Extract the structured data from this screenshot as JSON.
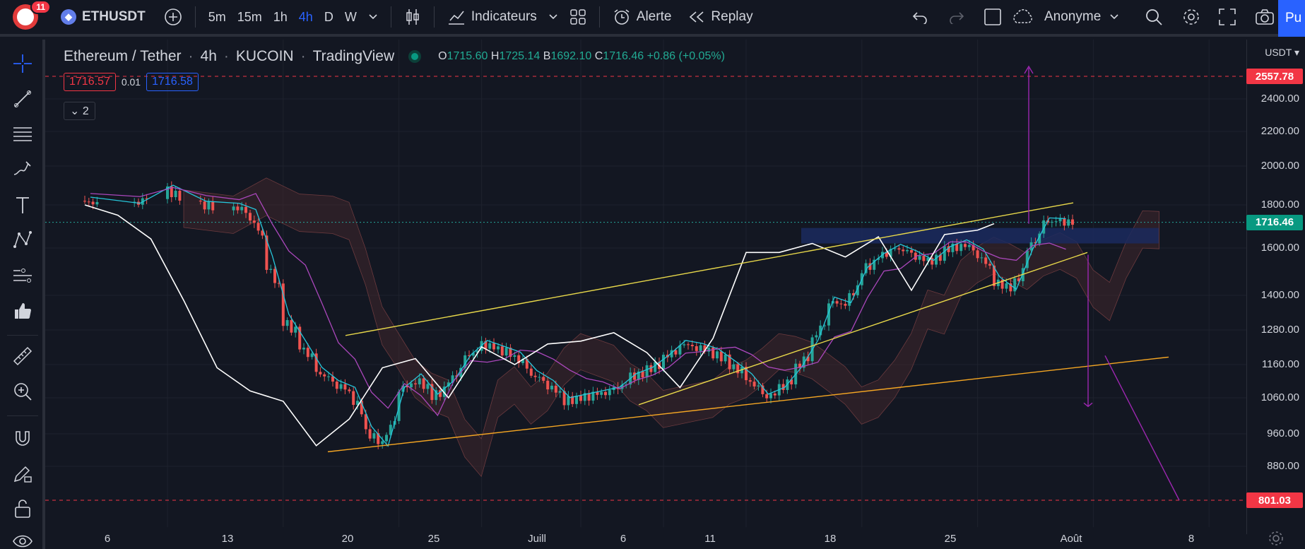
{
  "topbar": {
    "notification_count": "11",
    "symbol": "ETHUSDT",
    "intervals": [
      "5m",
      "15m",
      "1h",
      "4h",
      "D",
      "W"
    ],
    "active_interval": "4h",
    "indicators_label": "Indicateurs",
    "alert_label": "Alerte",
    "replay_label": "Replay",
    "layout_name": "Anonyme",
    "publish_label": "Pu"
  },
  "legend": {
    "title": "Ethereum / Tether",
    "interval": "4h",
    "exchange": "KUCOIN",
    "source": "TradingView",
    "o_label": "O",
    "o": "1715.60",
    "h_label": "H",
    "h": "1725.14",
    "l_label": "B",
    "l": "1692.10",
    "c_label": "C",
    "c": "1716.46",
    "change": "+0.86 (+0.05%)",
    "bid": "1716.57",
    "spread": "0.01",
    "ask": "1716.58",
    "indicators_collapsed_count": "2"
  },
  "price_axis": {
    "currency": "USDT",
    "labels": [
      "2400.00",
      "2200.00",
      "2000.00",
      "1800.00",
      "1600.00",
      "1400.00",
      "1280.00",
      "1160.00",
      "1060.00",
      "960.00",
      "880.00"
    ],
    "tag_upper_target": "2557.78",
    "tag_last_price": "1716.46",
    "tag_lower_target": "801.03"
  },
  "time_axis": {
    "labels": [
      "6",
      "13",
      "20",
      "25",
      "Juill",
      "6",
      "11",
      "18",
      "25",
      "Août",
      "8"
    ]
  },
  "colors": {
    "bg": "#131722",
    "up": "#26a69a",
    "down": "#ef5350",
    "accent": "#2962ff",
    "price_line": "#26a69a",
    "target": "#f23645",
    "trendline_yellow": "#e8d84a",
    "trendline_orange": "#f5a623",
    "projection": "#9c27b0"
  },
  "chart_data": {
    "type": "candlestick",
    "symbol": "ETHUSDT",
    "last_price": 1716.46,
    "resistance_zone": [
      1620,
      1690
    ],
    "upper_target": 2557.78,
    "lower_target": 801.03,
    "close_path": [
      [
        "06-01",
        1820
      ],
      [
        "06-04",
        1790
      ],
      [
        "06-06",
        1880
      ],
      [
        "06-08",
        1800
      ],
      [
        "06-10",
        1790
      ],
      [
        "06-11",
        1760
      ],
      [
        "06-12",
        1550
      ],
      [
        "06-13",
        1320
      ],
      [
        "06-14",
        1230
      ],
      [
        "06-15",
        1140
      ],
      [
        "06-16",
        1100
      ],
      [
        "06-17",
        1080
      ],
      [
        "06-18",
        970
      ],
      [
        "06-19",
        920
      ],
      [
        "06-20",
        1080
      ],
      [
        "06-21",
        1120
      ],
      [
        "06-22",
        1060
      ],
      [
        "06-23",
        1100
      ],
      [
        "06-24",
        1180
      ],
      [
        "06-25",
        1230
      ],
      [
        "06-26",
        1210
      ],
      [
        "06-27",
        1190
      ],
      [
        "06-28",
        1130
      ],
      [
        "06-29",
        1100
      ],
      [
        "06-30",
        1050
      ],
      [
        "07-01",
        1060
      ],
      [
        "07-02",
        1070
      ],
      [
        "07-03",
        1080
      ],
      [
        "07-04",
        1120
      ],
      [
        "07-05",
        1140
      ],
      [
        "07-06",
        1180
      ],
      [
        "07-07",
        1230
      ],
      [
        "07-08",
        1220
      ],
      [
        "07-09",
        1200
      ],
      [
        "07-10",
        1160
      ],
      [
        "07-11",
        1120
      ],
      [
        "07-12",
        1060
      ],
      [
        "07-13",
        1080
      ],
      [
        "07-14",
        1140
      ],
      [
        "07-15",
        1230
      ],
      [
        "07-16",
        1380
      ],
      [
        "07-17",
        1360
      ],
      [
        "07-18",
        1500
      ],
      [
        "07-19",
        1560
      ],
      [
        "07-20",
        1600
      ],
      [
        "07-21",
        1570
      ],
      [
        "07-22",
        1530
      ],
      [
        "07-23",
        1590
      ],
      [
        "07-24",
        1620
      ],
      [
        "07-25",
        1580
      ],
      [
        "07-26",
        1460
      ],
      [
        "07-27",
        1410
      ],
      [
        "07-28",
        1580
      ],
      [
        "07-29",
        1720
      ],
      [
        "07-30",
        1716.46
      ]
    ],
    "lagging_span": [
      [
        "06-01",
        1800
      ],
      [
        "06-03",
        1750
      ],
      [
        "06-05",
        1640
      ],
      [
        "06-07",
        1380
      ],
      [
        "06-09",
        1150
      ],
      [
        "06-11",
        1080
      ],
      [
        "06-13",
        1050
      ],
      [
        "06-15",
        930
      ],
      [
        "06-17",
        1000
      ],
      [
        "06-19",
        1150
      ],
      [
        "06-21",
        1180
      ],
      [
        "06-23",
        1060
      ],
      [
        "06-25",
        1220
      ],
      [
        "06-27",
        1160
      ],
      [
        "06-29",
        1230
      ],
      [
        "07-01",
        1240
      ],
      [
        "07-03",
        1270
      ],
      [
        "07-05",
        1200
      ],
      [
        "07-07",
        1090
      ],
      [
        "07-09",
        1250
      ],
      [
        "07-11",
        1580
      ],
      [
        "07-13",
        1580
      ],
      [
        "07-15",
        1620
      ],
      [
        "07-17",
        1560
      ],
      [
        "07-19",
        1650
      ],
      [
        "07-21",
        1420
      ],
      [
        "07-23",
        1660
      ],
      [
        "07-25",
        1680
      ],
      [
        "07-26",
        1710
      ]
    ]
  }
}
